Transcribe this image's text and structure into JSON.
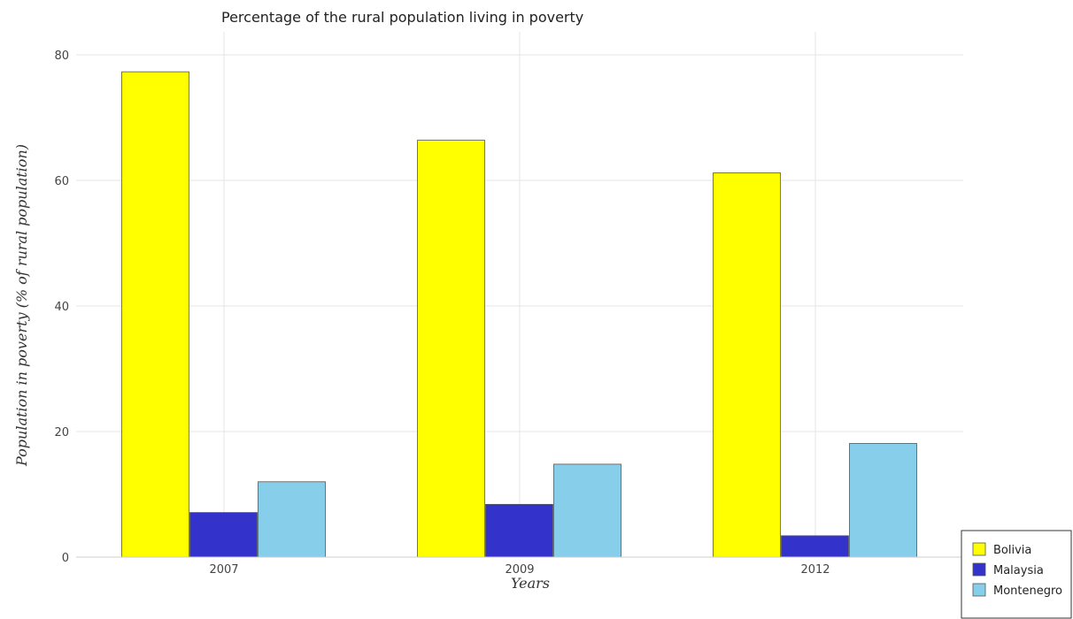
{
  "chart_data": {
    "type": "bar",
    "title": "Percentage of the rural population living in poverty",
    "xlabel": "Years",
    "ylabel": "Population in poverty (% of rural population)",
    "categories": [
      "2007",
      "2009",
      "2012"
    ],
    "ylim": [
      0,
      80
    ],
    "yticks": [
      0,
      20,
      40,
      60,
      80
    ],
    "grid": true,
    "legend_position": "bottom-right",
    "series": [
      {
        "name": "Bolivia",
        "color": "#ffff00",
        "values": [
          77.3,
          66.4,
          61.2
        ]
      },
      {
        "name": "Malaysia",
        "color": "#3333cc",
        "values": [
          7.1,
          8.4,
          3.4
        ]
      },
      {
        "name": "Montenegro",
        "color": "#87ceeb",
        "values": [
          12.0,
          14.8,
          18.1
        ]
      }
    ]
  }
}
